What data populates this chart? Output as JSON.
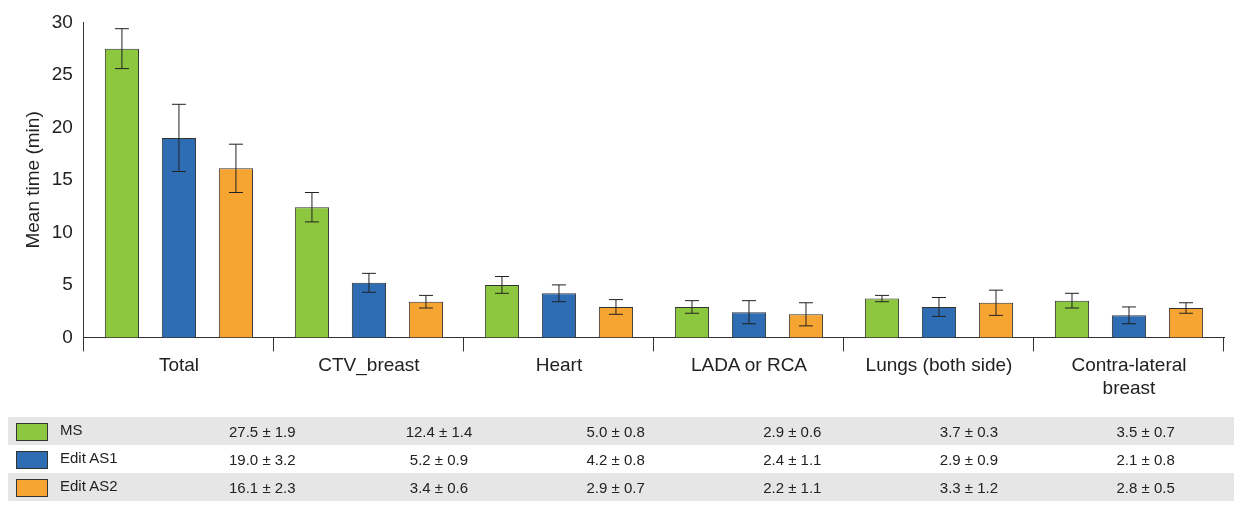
{
  "chart_data": {
    "type": "bar",
    "ylabel": "Mean time (min)",
    "categories": [
      "Total",
      "CTV_breast",
      "Heart",
      "LADA or RCA",
      "Lungs (both side)",
      "Contra-lateral breast"
    ],
    "ylim": [
      0,
      30
    ],
    "yticks": [
      0,
      5,
      10,
      15,
      20,
      25,
      30
    ],
    "grid": false,
    "legend": "bottom",
    "series": [
      {
        "name": "MS",
        "color": "#8dc63f",
        "values": [
          27.5,
          12.4,
          5.0,
          2.9,
          3.7,
          3.5
        ],
        "errors": [
          1.9,
          1.4,
          0.8,
          0.6,
          0.3,
          0.7
        ],
        "value_labels": [
          "27.5 ± 1.9",
          "12.4 ± 1.4",
          "5.0 ± 0.8",
          "2.9 ± 0.6",
          "3.7 ± 0.3",
          "3.5 ± 0.7"
        ]
      },
      {
        "name": "Edit AS1",
        "color": "#2e6db4",
        "values": [
          19.0,
          5.2,
          4.2,
          2.4,
          2.9,
          2.1
        ],
        "errors": [
          3.2,
          0.9,
          0.8,
          1.1,
          0.9,
          0.8
        ],
        "value_labels": [
          "19.0 ± 3.2",
          "5.2 ± 0.9",
          "4.2 ± 0.8",
          "2.4 ± 1.1",
          "2.9 ± 0.9",
          "2.1 ± 0.8"
        ]
      },
      {
        "name": "Edit AS2",
        "color": "#f7a532",
        "values": [
          16.1,
          3.4,
          2.9,
          2.2,
          3.3,
          2.8
        ],
        "errors": [
          2.3,
          0.6,
          0.7,
          1.1,
          1.2,
          0.5
        ],
        "value_labels": [
          "16.1 ± 2.3",
          "3.4 ± 0.6",
          "2.9 ± 0.7",
          "2.2 ± 1.1",
          "3.3 ± 1.2",
          "2.8 ± 0.5"
        ]
      }
    ]
  }
}
